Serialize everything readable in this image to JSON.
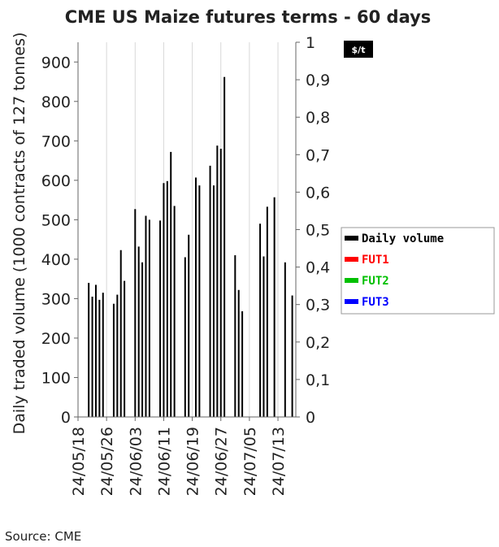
{
  "chart_data": {
    "type": "bar",
    "title": "CME US Maize futures terms - 60 days",
    "ylabel": "Daily traded volume (1000 contracts of 127 tonnes)",
    "y2label": "$/t",
    "ylim": [
      0,
      950
    ],
    "y2lim": [
      0,
      1
    ],
    "yticks": [
      "0",
      "100",
      "200",
      "300",
      "400",
      "500",
      "600",
      "700",
      "800",
      "900"
    ],
    "y2ticks": [
      "0",
      "0,1",
      "0,2",
      "0,3",
      "0,4",
      "0,5",
      "0,6",
      "0,7",
      "0,8",
      "0,9",
      "1"
    ],
    "x_start": "24/05/18",
    "x_end": "24/07/18",
    "xticks": [
      "24/05/18",
      "24/05/26",
      "24/06/03",
      "24/06/11",
      "24/06/19",
      "24/06/27",
      "24/07/05",
      "24/07/13"
    ],
    "grid": "vertical",
    "legend_position": "right",
    "series": [
      {
        "name": "Daily volume",
        "color": "#000000",
        "points": [
          {
            "date": "24/05/21",
            "value": 340
          },
          {
            "date": "24/05/22",
            "value": 305
          },
          {
            "date": "24/05/23",
            "value": 335
          },
          {
            "date": "24/05/24",
            "value": 297
          },
          {
            "date": "24/05/25",
            "value": 315
          },
          {
            "date": "24/05/28",
            "value": 287
          },
          {
            "date": "24/05/29",
            "value": 310
          },
          {
            "date": "24/05/30",
            "value": 423
          },
          {
            "date": "24/05/31",
            "value": 345
          },
          {
            "date": "24/06/03",
            "value": 527
          },
          {
            "date": "24/06/04",
            "value": 432
          },
          {
            "date": "24/06/05",
            "value": 392
          },
          {
            "date": "24/06/06",
            "value": 510
          },
          {
            "date": "24/06/07",
            "value": 500
          },
          {
            "date": "24/06/10",
            "value": 498
          },
          {
            "date": "24/06/11",
            "value": 593
          },
          {
            "date": "24/06/12",
            "value": 598
          },
          {
            "date": "24/06/13",
            "value": 672
          },
          {
            "date": "24/06/14",
            "value": 535
          },
          {
            "date": "24/06/17",
            "value": 405
          },
          {
            "date": "24/06/18",
            "value": 462
          },
          {
            "date": "24/06/20",
            "value": 607
          },
          {
            "date": "24/06/21",
            "value": 587
          },
          {
            "date": "24/06/24",
            "value": 637
          },
          {
            "date": "24/06/25",
            "value": 587
          },
          {
            "date": "24/06/26",
            "value": 688
          },
          {
            "date": "24/06/27",
            "value": 680
          },
          {
            "date": "24/06/28",
            "value": 862
          },
          {
            "date": "24/07/01",
            "value": 410
          },
          {
            "date": "24/07/02",
            "value": 322
          },
          {
            "date": "24/07/03",
            "value": 268
          },
          {
            "date": "24/07/08",
            "value": 490
          },
          {
            "date": "24/07/09",
            "value": 407
          },
          {
            "date": "24/07/10",
            "value": 533
          },
          {
            "date": "24/07/12",
            "value": 557
          },
          {
            "date": "24/07/15",
            "value": 392
          },
          {
            "date": "24/07/17",
            "value": 308
          }
        ]
      },
      {
        "name": "FUT1",
        "color": "#ff0000",
        "points": []
      },
      {
        "name": "FUT2",
        "color": "#00c000",
        "points": []
      },
      {
        "name": "FUT3",
        "color": "#0000ff",
        "points": []
      }
    ]
  },
  "source": "Source: CME"
}
